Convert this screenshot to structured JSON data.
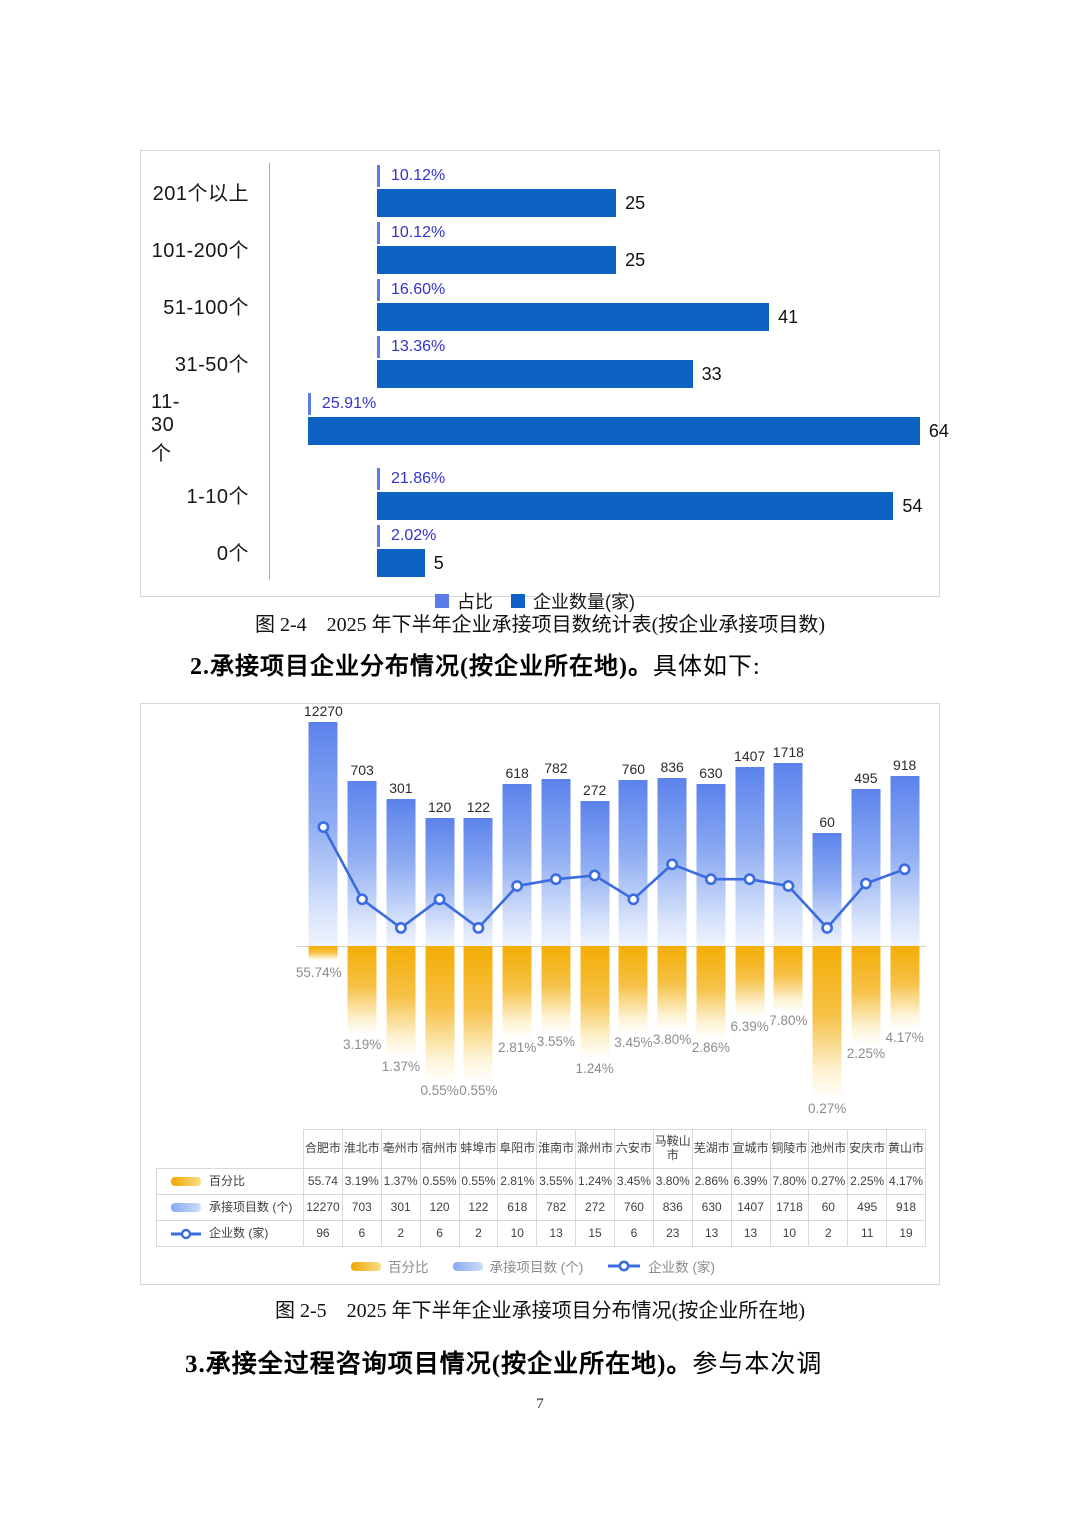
{
  "page_number": "7",
  "captions": {
    "fig24": "图 2-4　2025 年下半年企业承接项目数统计表(按企业承接项目数)",
    "fig25": "图 2-5　2025 年下半年企业承接项目分布情况(按企业所在地)"
  },
  "headings": {
    "section2_bold": "2.承接项目企业分布情况(按企业所在地)。",
    "section2_rest": "具体如下:",
    "section3_bold": "3.承接全过程咨询项目情况(按企业所在地)。",
    "section3_rest": "参与本次调"
  },
  "colors": {
    "chart1_bar": "#0e63c2",
    "chart1_pct_stub": "#5b7be8",
    "chart1_pct_text": "#3232cc",
    "chart2_blue_top": "#5b82ec",
    "chart2_gold_top": "#f3ad04",
    "chart2_line": "#3a6be0",
    "table_border": "#d9d9d9",
    "gray_label": "#8c8c8c"
  },
  "chart_data": [
    {
      "type": "bar",
      "orientation": "horizontal",
      "title": "企业承接项目数统计(按企业承接项目数)",
      "categories": [
        "201个以上",
        "101-200个",
        "51-100个",
        "31-50个",
        "11-30个",
        "1-10个",
        "0个"
      ],
      "series": [
        {
          "name": "占比",
          "unit": "%",
          "values": [
            10.12,
            10.12,
            16.6,
            13.36,
            25.91,
            21.86,
            2.02
          ],
          "labels": [
            "10.12%",
            "10.12%",
            "16.60%",
            "13.36%",
            "25.91%",
            "21.86%",
            "2.02%"
          ]
        },
        {
          "name": "企业数量(家)",
          "values": [
            25,
            25,
            41,
            33,
            64,
            54,
            5
          ]
        }
      ],
      "xlim": [
        0,
        64
      ],
      "legend": [
        "占比",
        "企业数量(家)"
      ],
      "legend_position": "bottom",
      "grid": false
    },
    {
      "type": "combo",
      "categories": [
        "合肥市",
        "淮北市",
        "亳州市",
        "宿州市",
        "蚌埠市",
        "阜阳市",
        "淮南市",
        "滁州市",
        "六安市",
        "马鞍山市",
        "芜湖市",
        "宣城市",
        "铜陵市",
        "池州市",
        "安庆市",
        "黄山市"
      ],
      "series": [
        {
          "name": "百分比",
          "type": "bar",
          "direction": "down",
          "unit": "%",
          "values": [
            55.74,
            3.19,
            1.37,
            0.55,
            0.55,
            2.81,
            3.55,
            1.24,
            3.45,
            3.8,
            2.86,
            6.39,
            7.8,
            0.27,
            2.25,
            4.17
          ],
          "labels": [
            "55.74%",
            "3.19%",
            "1.37%",
            "0.55%",
            "0.55%",
            "2.81%",
            "3.55%",
            "1.24%",
            "3.45%",
            "3.80%",
            "2.86%",
            "6.39%",
            "7.80%",
            "0.27%",
            "2.25%",
            "4.17%"
          ]
        },
        {
          "name": "承接项目数(个)",
          "type": "bar",
          "direction": "up",
          "values": [
            12270,
            703,
            301,
            120,
            122,
            618,
            782,
            272,
            760,
            836,
            630,
            1407,
            1718,
            60,
            495,
            918
          ]
        },
        {
          "name": "企业数(家)",
          "type": "line",
          "values": [
            96,
            6,
            2,
            6,
            2,
            10,
            13,
            15,
            6,
            23,
            13,
            13,
            10,
            2,
            11,
            19
          ]
        }
      ],
      "legend": [
        "百分比",
        "承接项目数 (个)",
        "企业数 (家)"
      ],
      "legend_position": "bottom",
      "scale": "log",
      "table": {
        "row_labels": [
          "百分比",
          "承接项目数 (个)",
          "企业数 (家)"
        ],
        "rows": [
          [
            "55.74",
            "3.19%",
            "1.37%",
            "0.55%",
            "0.55%",
            "2.81%",
            "3.55%",
            "1.24%",
            "3.45%",
            "3.80%",
            "2.86%",
            "6.39%",
            "7.80%",
            "0.27%",
            "2.25%",
            "4.17%"
          ],
          [
            "12270",
            "703",
            "301",
            "120",
            "122",
            "618",
            "782",
            "272",
            "760",
            "836",
            "630",
            "1407",
            "1718",
            "60",
            "495",
            "918"
          ],
          [
            "96",
            "6",
            "2",
            "6",
            "2",
            "10",
            "13",
            "15",
            "6",
            "23",
            "13",
            "13",
            "10",
            "2",
            "11",
            "19"
          ]
        ]
      }
    }
  ]
}
